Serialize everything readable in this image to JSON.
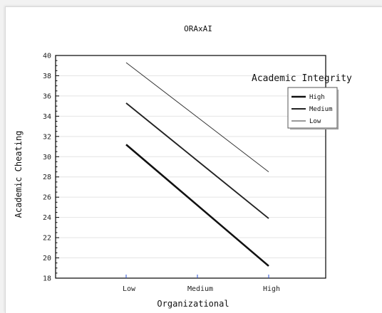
{
  "chart_data": {
    "type": "line",
    "title": "ORAxAI",
    "xlabel": "Organizational",
    "ylabel": "Academic Cheating",
    "categories": [
      "Low",
      "Medium",
      "High"
    ],
    "ylim": [
      18,
      40
    ],
    "yticks": [
      18,
      20,
      22,
      24,
      26,
      28,
      30,
      32,
      34,
      36,
      38,
      40
    ],
    "grid": true,
    "legend": {
      "title": "Academic Integrity",
      "placement": "top-right"
    },
    "series": [
      {
        "name": "High",
        "values": [
          31.2,
          25.2,
          19.2
        ],
        "color": "#111111",
        "weight": "thick"
      },
      {
        "name": "Medium",
        "values": [
          35.3,
          29.6,
          23.9
        ],
        "color": "#222222",
        "weight": "medium"
      },
      {
        "name": "Low",
        "values": [
          39.3,
          33.9,
          28.5
        ],
        "color": "#333333",
        "weight": "thin"
      }
    ]
  }
}
